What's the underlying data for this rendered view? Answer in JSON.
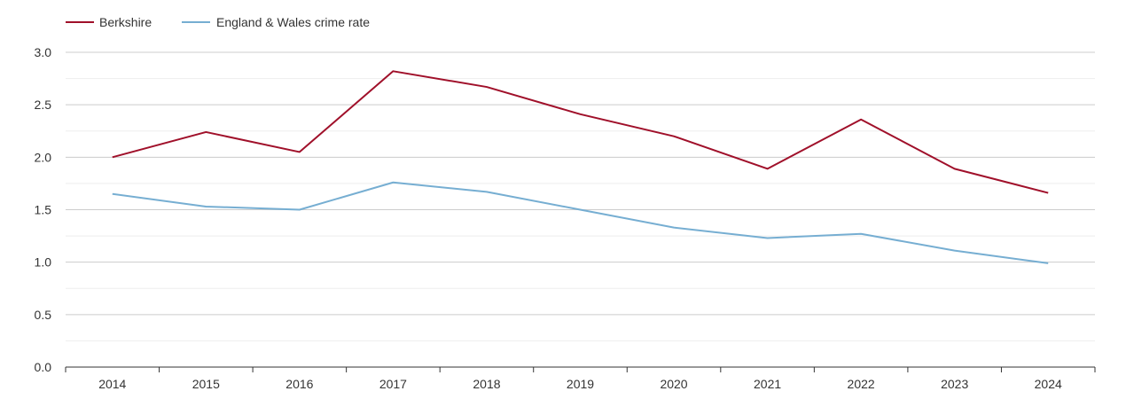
{
  "chart_data": {
    "type": "line",
    "title": "",
    "xlabel": "",
    "ylabel": "",
    "categories": [
      "2014",
      "2015",
      "2016",
      "2017",
      "2018",
      "2019",
      "2020",
      "2021",
      "2022",
      "2023",
      "2024"
    ],
    "series": [
      {
        "name": "Berkshire",
        "color": "#a0102a",
        "values": [
          2.0,
          2.24,
          2.05,
          2.82,
          2.67,
          2.41,
          2.2,
          1.89,
          2.36,
          1.89,
          1.66
        ]
      },
      {
        "name": "England & Wales crime rate",
        "color": "#76aed2",
        "values": [
          1.65,
          1.53,
          1.5,
          1.76,
          1.67,
          1.5,
          1.33,
          1.23,
          1.27,
          1.11,
          0.99
        ]
      }
    ],
    "ylim": [
      0,
      3.0
    ],
    "yticks": [
      "0.0",
      "0.5",
      "1.0",
      "1.5",
      "2.0",
      "2.5",
      "3.0"
    ],
    "grid": true,
    "legend": "top-left"
  }
}
